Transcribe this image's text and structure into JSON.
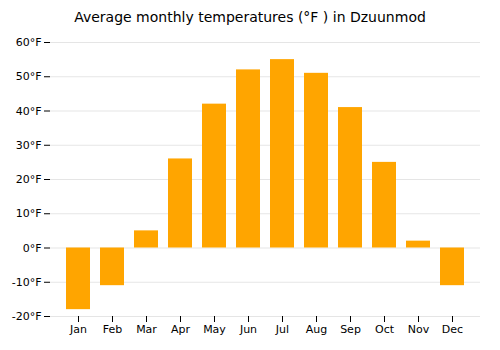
{
  "chart_data": {
    "type": "bar",
    "title": "Average monthly temperatures (°F ) in Dzuunmod",
    "categories": [
      "Jan",
      "Feb",
      "Mar",
      "Apr",
      "May",
      "Jun",
      "Jul",
      "Aug",
      "Sep",
      "Oct",
      "Nov",
      "Dec"
    ],
    "values": [
      -18,
      -11,
      5,
      26,
      42,
      52,
      55,
      51,
      41,
      25,
      2,
      -11
    ],
    "color": "#FFA500",
    "ylim": [
      -20,
      60
    ],
    "yticks": [
      {
        "value": -20,
        "label": "-20°F"
      },
      {
        "value": -10,
        "label": "-10°F"
      },
      {
        "value": 0,
        "label": "0°F"
      },
      {
        "value": 10,
        "label": "10°F"
      },
      {
        "value": 20,
        "label": "20°F"
      },
      {
        "value": 30,
        "label": "30°F"
      },
      {
        "value": 40,
        "label": "40°F"
      },
      {
        "value": 50,
        "label": "50°F"
      },
      {
        "value": 60,
        "label": "60°F"
      }
    ],
    "grid": true
  }
}
